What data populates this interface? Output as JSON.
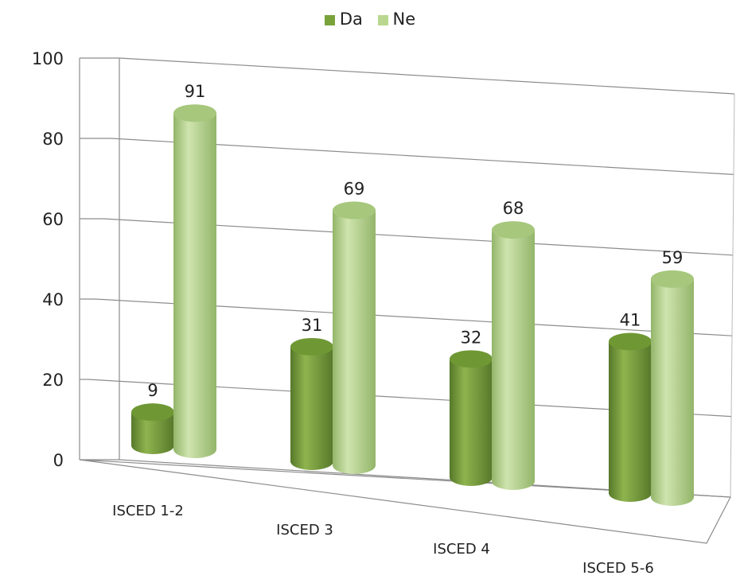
{
  "chart_data": {
    "type": "bar",
    "title": "",
    "xlabel": "",
    "ylabel": "",
    "ylim": [
      0,
      100
    ],
    "yticks": [
      0,
      20,
      40,
      60,
      80,
      100
    ],
    "categories": [
      "ISCED 1-2",
      "ISCED 3",
      "ISCED 4",
      "ISCED 5-6"
    ],
    "series": [
      {
        "name": "Da",
        "values": [
          9,
          31,
          32,
          41
        ],
        "color": "#79a23a"
      },
      {
        "name": "Ne",
        "values": [
          91,
          69,
          68,
          59
        ],
        "color": "#b9d78e"
      }
    ],
    "data_labels": true,
    "grid": true,
    "legend": "top-center",
    "style": "3D cylinder"
  }
}
